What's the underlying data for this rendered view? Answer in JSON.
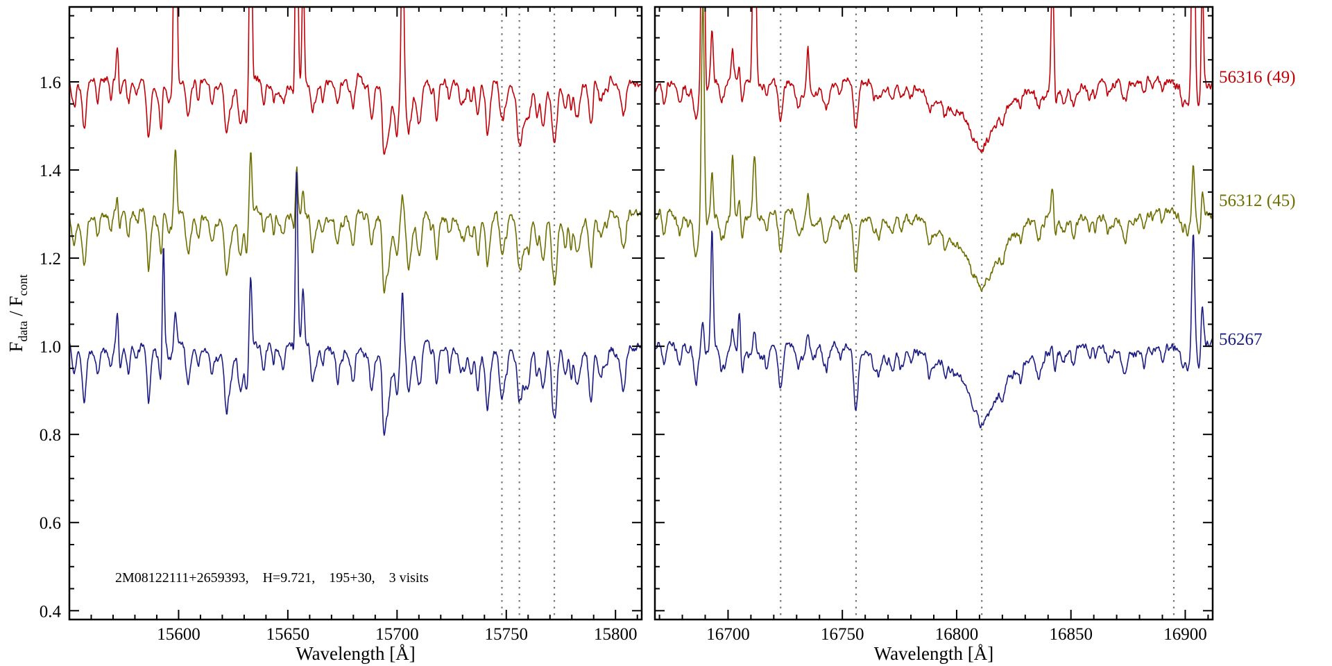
{
  "figure": {
    "background": "#ffffff",
    "axis_color": "#000000",
    "dashed_line_color": "#787878"
  },
  "chart_data": {
    "type": "line",
    "title": "",
    "xlabel": "Wavelength [Å]",
    "ylabel": "F_data / F_cont",
    "ylim": [
      0.38,
      1.77
    ],
    "yticks": [
      0.4,
      0.6,
      0.8,
      1.0,
      1.2,
      1.4,
      1.6
    ],
    "y_minor_step": 0.05,
    "noise_amplitude": 0.012,
    "annotation": "2M08122111+2659393,    H=9.721,    195+30,    3 visits",
    "legend_position": "right-outside",
    "grid": false,
    "series": [
      {
        "name": "56316 (49)",
        "color": "#c00008",
        "offset": 1.6,
        "seed": 11,
        "depth_scale": 0.93,
        "label_value": 1.61
      },
      {
        "name": "56312 (45)",
        "color": "#6e6e00",
        "offset": 1.3,
        "seed": 22,
        "depth_scale": 1.0,
        "label_value": 1.33
      },
      {
        "name": "56267",
        "color": "#1c1c82",
        "offset": 1.0,
        "seed": 33,
        "depth_scale": 1.05,
        "label_value": 1.015
      }
    ],
    "panels": [
      {
        "xlim": [
          15550,
          15812
        ],
        "xticks": [
          15600,
          15650,
          15700,
          15750,
          15800
        ],
        "x_minor_step": 10,
        "dashed_lines": [
          15748,
          15756,
          15772
        ],
        "seed": 7,
        "n_random_lines": 80,
        "random_line_depth": [
          0.008,
          0.05
        ],
        "absorption_lines": [
          [
            15552,
            0.06,
            0.9
          ],
          [
            15557,
            0.07,
            0.8
          ],
          [
            15563,
            0.05,
            0.7
          ],
          [
            15569,
            0.04,
            0.7
          ],
          [
            15577,
            0.06,
            0.8
          ],
          [
            15586,
            0.05,
            0.7
          ],
          [
            15592,
            0.06,
            0.7
          ],
          [
            15604,
            0.06,
            0.8
          ],
          [
            15609,
            0.05,
            0.7
          ],
          [
            15615,
            0.04,
            0.6
          ],
          [
            15622,
            0.06,
            0.8
          ],
          [
            15629,
            0.08,
            0.9
          ],
          [
            15631,
            0.1,
            0.6
          ],
          [
            15639,
            0.05,
            0.7
          ],
          [
            15648,
            0.04,
            0.7
          ],
          [
            15653,
            0.04,
            0.6
          ],
          [
            15661,
            0.05,
            0.7
          ],
          [
            15666,
            0.04,
            0.6
          ],
          [
            15673,
            0.05,
            0.7
          ],
          [
            15680,
            0.04,
            0.7
          ],
          [
            15688,
            0.06,
            0.8
          ],
          [
            15694,
            0.05,
            0.7
          ],
          [
            15700,
            0.05,
            0.7
          ],
          [
            15705,
            0.04,
            0.6
          ],
          [
            15711,
            0.04,
            0.7
          ],
          [
            15718,
            0.05,
            0.7
          ],
          [
            15724,
            0.04,
            0.6
          ],
          [
            15731,
            0.04,
            0.7
          ],
          [
            15737,
            0.05,
            0.8
          ],
          [
            15741,
            0.04,
            0.6
          ],
          [
            15748,
            0.1,
            1.1
          ],
          [
            15756,
            0.12,
            1.1
          ],
          [
            15760,
            0.06,
            0.8
          ],
          [
            15764,
            0.07,
            0.8
          ],
          [
            15772,
            0.16,
            1.2
          ],
          [
            15777,
            0.07,
            0.9
          ],
          [
            15782,
            0.06,
            0.8
          ],
          [
            15789,
            0.05,
            0.8
          ],
          [
            15796,
            0.04,
            0.7
          ],
          [
            15804,
            0.05,
            0.8
          ]
        ],
        "emission_spikes": [
          {
            "x": 15572,
            "w": 0.5,
            "amps": [
              0.08,
              0.04,
              0.1
            ]
          },
          {
            "x": 15593,
            "w": 0.5,
            "amps": [
              0.05,
              0.04,
              0.27
            ]
          },
          {
            "x": 15598.5,
            "w": 0.6,
            "amps": [
              0.85,
              0.16,
              0.07
            ]
          },
          {
            "x": 15633,
            "w": 0.55,
            "amps": [
              0.5,
              0.13,
              0.16
            ]
          },
          {
            "x": 15654,
            "w": 0.55,
            "amps": [
              0.6,
              0.11,
              0.4
            ]
          },
          {
            "x": 15657,
            "w": 0.5,
            "amps": [
              0.25,
              0.06,
              0.12
            ]
          },
          {
            "x": 15702.5,
            "w": 0.55,
            "amps": [
              0.42,
              0.05,
              0.12
            ]
          }
        ]
      },
      {
        "xlim": [
          16668,
          16912
        ],
        "xticks": [
          16700,
          16750,
          16800,
          16850,
          16900
        ],
        "x_minor_step": 10,
        "dashed_lines": [
          16723,
          16756,
          16811,
          16895
        ],
        "seed": 8,
        "n_random_lines": 40,
        "random_line_depth": [
          0.006,
          0.03
        ],
        "absorption_lines": [
          [
            16672,
            0.05,
            0.8
          ],
          [
            16679,
            0.04,
            0.7
          ],
          [
            16686,
            0.08,
            1.0
          ],
          [
            16697,
            0.04,
            0.7
          ],
          [
            16706,
            0.03,
            0.7
          ],
          [
            16717,
            0.04,
            0.7
          ],
          [
            16723,
            0.1,
            1.0
          ],
          [
            16731,
            0.03,
            0.7
          ],
          [
            16742,
            0.04,
            0.8
          ],
          [
            16749,
            0.03,
            0.7
          ],
          [
            16756,
            0.1,
            1.0
          ],
          [
            16764,
            0.03,
            0.7
          ],
          [
            16772,
            0.04,
            0.8
          ],
          [
            16780,
            0.03,
            0.7
          ],
          [
            16788,
            0.04,
            0.8
          ],
          [
            16795,
            0.03,
            0.7
          ],
          [
            16811,
            0.045,
            4.0
          ],
          [
            16820,
            0.03,
            0.7
          ],
          [
            16828,
            0.03,
            0.7
          ],
          [
            16836,
            0.03,
            0.7
          ],
          [
            16843,
            0.03,
            0.7
          ],
          [
            16851,
            0.03,
            0.7
          ],
          [
            16858,
            0.03,
            0.7
          ],
          [
            16866,
            0.03,
            0.7
          ],
          [
            16874,
            0.03,
            0.7
          ],
          [
            16882,
            0.03,
            0.7
          ],
          [
            16890,
            0.03,
            0.7
          ],
          [
            16899,
            0.04,
            0.8
          ],
          [
            16906,
            0.04,
            0.8
          ]
        ],
        "broad_lines": [
          {
            "x": 16811,
            "depth": 0.115,
            "gamma": 12
          }
        ],
        "emission_spikes": [
          {
            "x": 16689,
            "w": 0.6,
            "amps": [
              0.8,
              0.5,
              0.06
            ]
          },
          {
            "x": 16693,
            "w": 0.5,
            "amps": [
              0.12,
              0.1,
              0.26
            ]
          },
          {
            "x": 16702,
            "w": 0.5,
            "amps": [
              0.06,
              0.14,
              0.04
            ]
          },
          {
            "x": 16705,
            "w": 0.5,
            "amps": [
              0.04,
              0.06,
              0.1
            ]
          },
          {
            "x": 16711.5,
            "w": 0.6,
            "amps": [
              0.6,
              0.14,
              0.05
            ]
          },
          {
            "x": 16735,
            "w": 0.5,
            "amps": [
              0.09,
              0.05,
              0.03
            ]
          },
          {
            "x": 16842,
            "w": 0.6,
            "amps": [
              0.3,
              0.1,
              0.04
            ]
          },
          {
            "x": 16903.5,
            "w": 0.6,
            "amps": [
              0.7,
              0.12,
              0.27
            ]
          },
          {
            "x": 16907.5,
            "w": 0.5,
            "amps": [
              0.25,
              0.06,
              0.1
            ]
          }
        ]
      }
    ]
  }
}
